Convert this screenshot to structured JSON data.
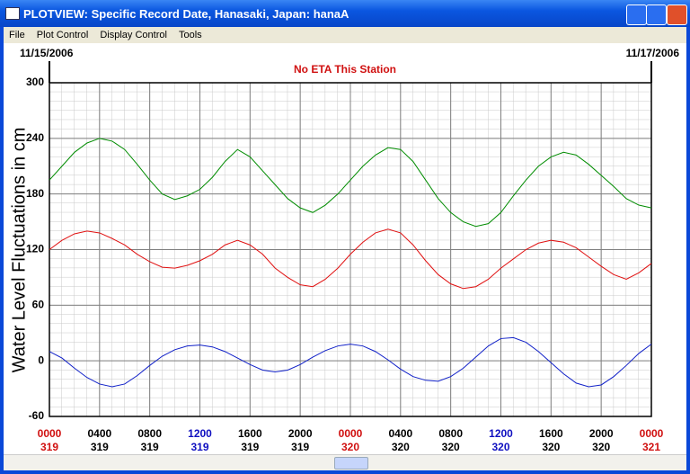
{
  "window": {
    "title": "PLOTVIEW: Specific Record Date, Hanasaki, Japan: hanaA"
  },
  "menu": [
    "File",
    "Plot Control",
    "Display Control",
    "Tools"
  ],
  "chart_data": {
    "type": "line",
    "start_date": "11/15/2006",
    "end_date": "11/17/2006",
    "annotation": "No ETA This Station",
    "ylabel": "Water Level Fluctuations in cm",
    "ylim": [
      -60,
      300
    ],
    "yticks": [
      -60,
      0,
      60,
      120,
      180,
      240,
      300
    ],
    "xlim": [
      0,
      48
    ],
    "xticks": [
      {
        "value": 0,
        "label": "0000"
      },
      {
        "value": 4,
        "label": "0400"
      },
      {
        "value": 8,
        "label": "0800"
      },
      {
        "value": 12,
        "label": "1200"
      },
      {
        "value": 16,
        "label": "1600"
      },
      {
        "value": 20,
        "label": "2000"
      },
      {
        "value": 24,
        "label": "0000"
      },
      {
        "value": 28,
        "label": "0400"
      },
      {
        "value": 32,
        "label": "0800"
      },
      {
        "value": 36,
        "label": "1200"
      },
      {
        "value": 40,
        "label": "1600"
      },
      {
        "value": 44,
        "label": "2000"
      },
      {
        "value": 48,
        "label": "0000"
      }
    ],
    "xtick_days": [
      "319",
      "319",
      "319",
      "319",
      "319",
      "319",
      "320",
      "320",
      "320",
      "320",
      "320",
      "320",
      "321"
    ],
    "xtick_colors": [
      "#d01010",
      "#000000",
      "#000000",
      "#1010c0",
      "#000000",
      "#000000",
      "#d01010",
      "#000000",
      "#000000",
      "#1010c0",
      "#000000",
      "#000000",
      "#d01010"
    ],
    "grid": true,
    "x": [
      0,
      1,
      2,
      3,
      4,
      5,
      6,
      7,
      8,
      9,
      10,
      11,
      12,
      13,
      14,
      15,
      16,
      17,
      18,
      19,
      20,
      21,
      22,
      23,
      24,
      25,
      26,
      27,
      28,
      29,
      30,
      31,
      32,
      33,
      34,
      35,
      36,
      37,
      38,
      39,
      40,
      41,
      42,
      43,
      44,
      45,
      46,
      47,
      48
    ],
    "series": [
      {
        "color": "#008c00",
        "values": [
          195,
          210,
          225,
          235,
          240,
          237,
          228,
          212,
          195,
          180,
          174,
          178,
          185,
          198,
          215,
          228,
          220,
          205,
          190,
          175,
          165,
          160,
          168,
          180,
          195,
          210,
          222,
          230,
          228,
          215,
          195,
          175,
          160,
          150,
          145,
          148,
          160,
          178,
          195,
          210,
          220,
          225,
          222,
          212,
          200,
          188,
          175,
          168,
          165
        ]
      },
      {
        "color": "#e01010",
        "values": [
          120,
          130,
          137,
          140,
          138,
          132,
          125,
          115,
          107,
          101,
          100,
          103,
          108,
          115,
          125,
          130,
          125,
          115,
          100,
          90,
          82,
          80,
          88,
          100,
          115,
          128,
          138,
          142,
          138,
          125,
          108,
          93,
          83,
          78,
          80,
          88,
          100,
          110,
          120,
          127,
          130,
          128,
          122,
          112,
          102,
          93,
          88,
          95,
          105
        ]
      },
      {
        "color": "#1020c8",
        "values": [
          10,
          3,
          -8,
          -18,
          -25,
          -28,
          -25,
          -16,
          -5,
          5,
          12,
          16,
          17,
          15,
          10,
          3,
          -4,
          -10,
          -12,
          -10,
          -4,
          4,
          11,
          16,
          18,
          16,
          10,
          1,
          -9,
          -17,
          -21,
          -22,
          -17,
          -8,
          4,
          16,
          24,
          25,
          20,
          10,
          -2,
          -14,
          -24,
          -28,
          -26,
          -17,
          -5,
          8,
          18
        ]
      }
    ]
  }
}
